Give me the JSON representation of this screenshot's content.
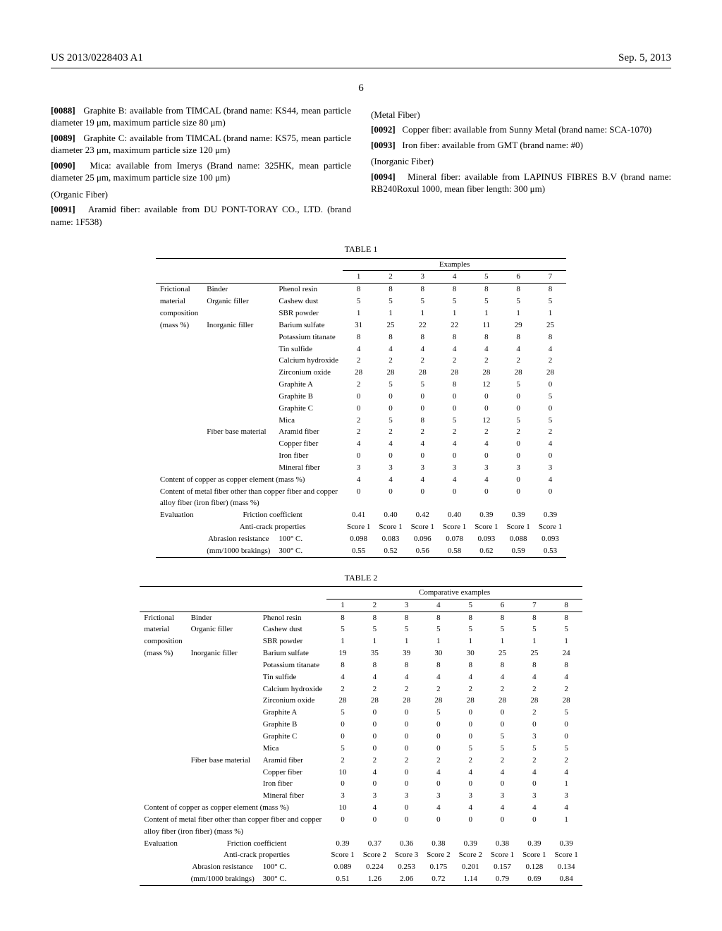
{
  "header": {
    "pub_number": "US 2013/0228403 A1",
    "date": "Sep. 5, 2013",
    "page_number": "6"
  },
  "left_column": {
    "p88": {
      "num": "[0088]",
      "text": "Graphite B: available from TIMCAL (brand name: KS44, mean particle diameter 19 μm, maximum particle size 80 μm)"
    },
    "p89": {
      "num": "[0089]",
      "text": "Graphite C: available from TIMCAL (brand name: KS75, mean particle diameter 23 μm, maximum particle size 120 μm)"
    },
    "p90": {
      "num": "[0090]",
      "text": "Mica: available from Imerys (Brand name: 325HK, mean particle diameter 25 μm, maximum particle size 100 μm)"
    },
    "sub_organic": "(Organic Fiber)",
    "p91": {
      "num": "[0091]",
      "text": "Aramid fiber: available from DU PONT-TORAY CO., LTD. (brand name: 1F538)"
    }
  },
  "right_column": {
    "sub_metal": "(Metal Fiber)",
    "p92": {
      "num": "[0092]",
      "text": "Copper fiber: available from Sunny Metal (brand name: SCA-1070)"
    },
    "p93": {
      "num": "[0093]",
      "text": "Iron fiber: available from GMT (brand name: #0)"
    },
    "sub_inorg": "(Inorganic Fiber)",
    "p94": {
      "num": "[0094]",
      "text": "Mineral fiber: available from LAPINUS FIBRES B.V (brand name: RB240Roxul 1000, mean fiber length: 300 μm)"
    }
  },
  "table1": {
    "title": "TABLE 1",
    "group_header": "Examples",
    "col_nums": [
      "1",
      "2",
      "3",
      "4",
      "5",
      "6",
      "7"
    ],
    "section1_labels": {
      "l1": "Frictional",
      "l2": "material",
      "l3": "composition",
      "l4": "(mass %)"
    },
    "cat": {
      "binder": "Binder",
      "org_filler": "Organic filler",
      "inorg_filler": "Inorganic filler",
      "fiber": "Fiber base material"
    },
    "rows": [
      {
        "name": "Phenol resin",
        "v": [
          "8",
          "8",
          "8",
          "8",
          "8",
          "8",
          "8"
        ]
      },
      {
        "name": "Cashew dust",
        "v": [
          "5",
          "5",
          "5",
          "5",
          "5",
          "5",
          "5"
        ]
      },
      {
        "name": "SBR powder",
        "v": [
          "1",
          "1",
          "1",
          "1",
          "1",
          "1",
          "1"
        ]
      },
      {
        "name": "Barium sulfate",
        "v": [
          "31",
          "25",
          "22",
          "22",
          "11",
          "29",
          "25"
        ]
      },
      {
        "name": "Potassium titanate",
        "v": [
          "8",
          "8",
          "8",
          "8",
          "8",
          "8",
          "8"
        ]
      },
      {
        "name": "Tin sulfide",
        "v": [
          "4",
          "4",
          "4",
          "4",
          "4",
          "4",
          "4"
        ]
      },
      {
        "name": "Calcium hydroxide",
        "v": [
          "2",
          "2",
          "2",
          "2",
          "2",
          "2",
          "2"
        ]
      },
      {
        "name": "Zirconium oxide",
        "v": [
          "28",
          "28",
          "28",
          "28",
          "28",
          "28",
          "28"
        ]
      },
      {
        "name": "Graphite A",
        "v": [
          "2",
          "5",
          "5",
          "8",
          "12",
          "5",
          "0"
        ]
      },
      {
        "name": "Graphite B",
        "v": [
          "0",
          "0",
          "0",
          "0",
          "0",
          "0",
          "5"
        ]
      },
      {
        "name": "Graphite C",
        "v": [
          "0",
          "0",
          "0",
          "0",
          "0",
          "0",
          "0"
        ]
      },
      {
        "name": "Mica",
        "v": [
          "2",
          "5",
          "8",
          "5",
          "12",
          "5",
          "5"
        ]
      },
      {
        "name": "Aramid fiber",
        "v": [
          "2",
          "2",
          "2",
          "2",
          "2",
          "2",
          "2"
        ]
      },
      {
        "name": "Copper fiber",
        "v": [
          "4",
          "4",
          "4",
          "4",
          "4",
          "0",
          "4"
        ]
      },
      {
        "name": "Iron fiber",
        "v": [
          "0",
          "0",
          "0",
          "0",
          "0",
          "0",
          "0"
        ]
      },
      {
        "name": "Mineral fiber",
        "v": [
          "3",
          "3",
          "3",
          "3",
          "3",
          "3",
          "3"
        ]
      }
    ],
    "copper_row": {
      "label": "Content of copper as copper element (mass %)",
      "v": [
        "4",
        "4",
        "4",
        "4",
        "4",
        "0",
        "4"
      ]
    },
    "metal_row": {
      "label1": "Content of metal fiber other than copper fiber and copper",
      "label2": "alloy fiber (iron fiber) (mass %)",
      "v": [
        "0",
        "0",
        "0",
        "0",
        "0",
        "0",
        "0"
      ]
    },
    "eval_label": "Evaluation",
    "eval_rows": [
      {
        "name": "Friction coefficient",
        "v": [
          "0.41",
          "0.40",
          "0.42",
          "0.40",
          "0.39",
          "0.39",
          "0.39"
        ]
      },
      {
        "name": "Anti-crack properties",
        "v": [
          "Score 1",
          "Score 1",
          "Score 1",
          "Score 1",
          "Score 1",
          "Score 1",
          "Score 1"
        ]
      }
    ],
    "abr_label": "Abrasion resistance",
    "abr_sub_label": "(mm/1000 brakings)",
    "abr_rows": [
      {
        "name": "100° C.",
        "v": [
          "0.098",
          "0.083",
          "0.096",
          "0.078",
          "0.093",
          "0.088",
          "0.093"
        ]
      },
      {
        "name": "300° C.",
        "v": [
          "0.55",
          "0.52",
          "0.56",
          "0.58",
          "0.62",
          "0.59",
          "0.53"
        ]
      }
    ]
  },
  "table2": {
    "title": "TABLE 2",
    "group_header": "Comparative examples",
    "col_nums": [
      "1",
      "2",
      "3",
      "4",
      "5",
      "6",
      "7",
      "8"
    ],
    "rows": [
      {
        "name": "Phenol resin",
        "v": [
          "8",
          "8",
          "8",
          "8",
          "8",
          "8",
          "8",
          "8"
        ]
      },
      {
        "name": "Cashew dust",
        "v": [
          "5",
          "5",
          "5",
          "5",
          "5",
          "5",
          "5",
          "5"
        ]
      },
      {
        "name": "SBR powder",
        "v": [
          "1",
          "1",
          "1",
          "1",
          "1",
          "1",
          "1",
          "1"
        ]
      },
      {
        "name": "Barium sulfate",
        "v": [
          "19",
          "35",
          "39",
          "30",
          "30",
          "25",
          "25",
          "24"
        ]
      },
      {
        "name": "Potassium titanate",
        "v": [
          "8",
          "8",
          "8",
          "8",
          "8",
          "8",
          "8",
          "8"
        ]
      },
      {
        "name": "Tin sulfide",
        "v": [
          "4",
          "4",
          "4",
          "4",
          "4",
          "4",
          "4",
          "4"
        ]
      },
      {
        "name": "Calcium hydroxide",
        "v": [
          "2",
          "2",
          "2",
          "2",
          "2",
          "2",
          "2",
          "2"
        ]
      },
      {
        "name": "Zirconium oxide",
        "v": [
          "28",
          "28",
          "28",
          "28",
          "28",
          "28",
          "28",
          "28"
        ]
      },
      {
        "name": "Graphite A",
        "v": [
          "5",
          "0",
          "0",
          "5",
          "0",
          "0",
          "2",
          "5"
        ]
      },
      {
        "name": "Graphite B",
        "v": [
          "0",
          "0",
          "0",
          "0",
          "0",
          "0",
          "0",
          "0"
        ]
      },
      {
        "name": "Graphite C",
        "v": [
          "0",
          "0",
          "0",
          "0",
          "0",
          "5",
          "3",
          "0"
        ]
      },
      {
        "name": "Mica",
        "v": [
          "5",
          "0",
          "0",
          "0",
          "5",
          "5",
          "5",
          "5"
        ]
      },
      {
        "name": "Aramid fiber",
        "v": [
          "2",
          "2",
          "2",
          "2",
          "2",
          "2",
          "2",
          "2"
        ]
      },
      {
        "name": "Copper fiber",
        "v": [
          "10",
          "4",
          "0",
          "4",
          "4",
          "4",
          "4",
          "4"
        ]
      },
      {
        "name": "Iron fiber",
        "v": [
          "0",
          "0",
          "0",
          "0",
          "0",
          "0",
          "0",
          "1"
        ]
      },
      {
        "name": "Mineral fiber",
        "v": [
          "3",
          "3",
          "3",
          "3",
          "3",
          "3",
          "3",
          "3"
        ]
      }
    ],
    "copper_row": {
      "label": "Content of copper as copper element (mass %)",
      "v": [
        "10",
        "4",
        "0",
        "4",
        "4",
        "4",
        "4",
        "4"
      ]
    },
    "metal_row": {
      "label1": "Content of metal fiber other than copper fiber and copper",
      "label2": "alloy fiber (iron fiber) (mass %)",
      "v": [
        "0",
        "0",
        "0",
        "0",
        "0",
        "0",
        "0",
        "1"
      ]
    },
    "eval_rows": [
      {
        "name": "Friction coefficient",
        "v": [
          "0.39",
          "0.37",
          "0.36",
          "0.38",
          "0.39",
          "0.38",
          "0.39",
          "0.39"
        ]
      },
      {
        "name": "Anti-crack properties",
        "v": [
          "Score 1",
          "Score 2",
          "Score 3",
          "Score 2",
          "Score 2",
          "Score 1",
          "Score 1",
          "Score 1"
        ]
      }
    ],
    "abr_rows": [
      {
        "name": "100° C.",
        "v": [
          "0.089",
          "0.224",
          "0.253",
          "0.175",
          "0.201",
          "0.157",
          "0.128",
          "0.134"
        ]
      },
      {
        "name": "300° C.",
        "v": [
          "0.51",
          "1.26",
          "2.06",
          "0.72",
          "1.14",
          "0.79",
          "0.69",
          "0.84"
        ]
      }
    ]
  }
}
